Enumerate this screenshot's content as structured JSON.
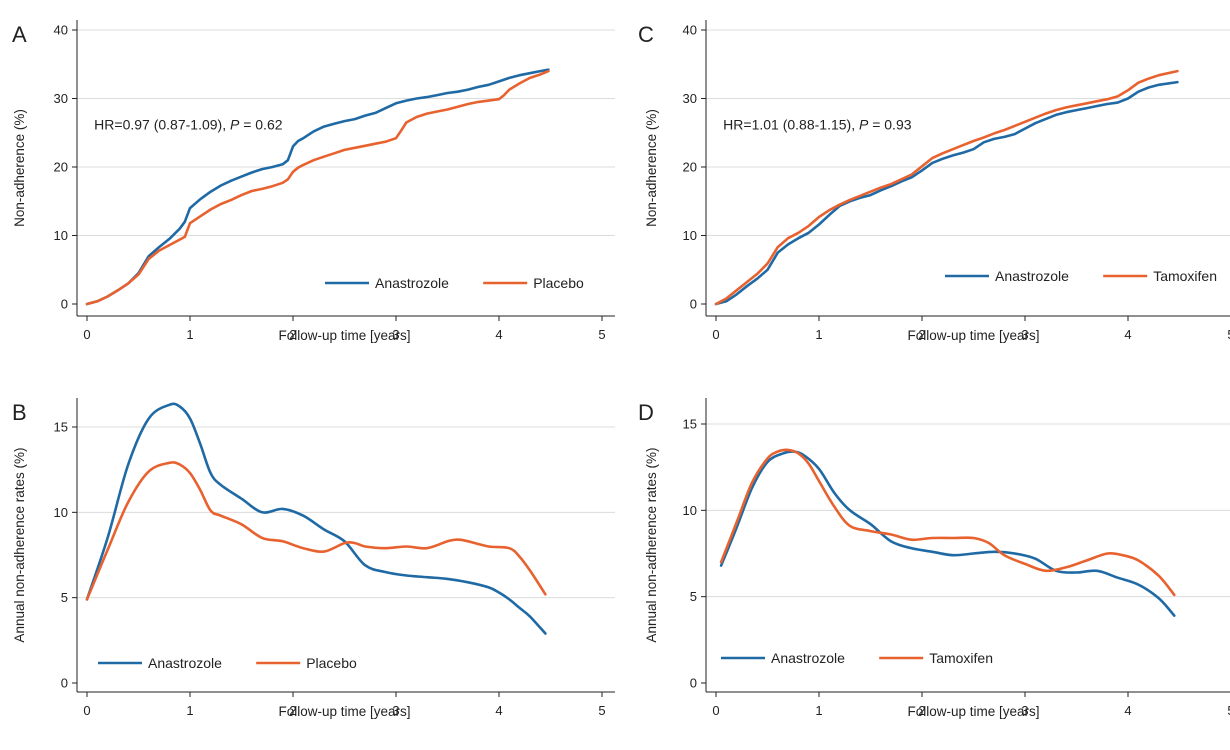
{
  "chart_data": [
    {
      "panel": "A",
      "type": "line",
      "xlabel": "Follow-up time [years]",
      "ylabel": "Non-adherence (%)",
      "xlim": [
        0,
        5
      ],
      "ylim": [
        0,
        40
      ],
      "xticks": [
        "0",
        "1",
        "2",
        "3",
        "4",
        "5"
      ],
      "yticks": [
        "0",
        "10",
        "20",
        "30",
        "40"
      ],
      "grid": "horizontal",
      "legend_position": "bottom-right",
      "annotation": {
        "prefix": "HR=0.97 (0.87-1.09), ",
        "p_symbol": "P",
        "suffix": " = 0.62"
      },
      "series": [
        {
          "name": "Anastrozole",
          "color": "#1f6aa5",
          "x": [
            0,
            0.1,
            0.2,
            0.3,
            0.4,
            0.5,
            0.6,
            0.7,
            0.8,
            0.9,
            0.95,
            1.0,
            1.1,
            1.2,
            1.3,
            1.4,
            1.5,
            1.6,
            1.7,
            1.8,
            1.9,
            1.95,
            2.0,
            2.05,
            2.1,
            2.2,
            2.3,
            2.4,
            2.5,
            2.6,
            2.7,
            2.8,
            2.9,
            3.0,
            3.1,
            3.2,
            3.3,
            3.4,
            3.5,
            3.6,
            3.7,
            3.8,
            3.9,
            4.0,
            4.1,
            4.2,
            4.3,
            4.4,
            4.48
          ],
          "y": [
            0,
            0.4,
            1.1,
            2.0,
            3.0,
            4.5,
            7.0,
            8.3,
            9.5,
            11.0,
            12.0,
            14.0,
            15.3,
            16.4,
            17.3,
            18.0,
            18.6,
            19.2,
            19.7,
            20.0,
            20.4,
            21.0,
            23.0,
            23.8,
            24.2,
            25.2,
            25.9,
            26.3,
            26.7,
            27.0,
            27.5,
            27.9,
            28.6,
            29.3,
            29.7,
            30.0,
            30.2,
            30.5,
            30.8,
            31.0,
            31.3,
            31.7,
            32.0,
            32.5,
            33.0,
            33.4,
            33.7,
            34.0,
            34.2
          ]
        },
        {
          "name": "Placebo",
          "color": "#e8622f",
          "x": [
            0,
            0.1,
            0.2,
            0.3,
            0.4,
            0.5,
            0.6,
            0.7,
            0.8,
            0.9,
            0.95,
            1.0,
            1.1,
            1.2,
            1.3,
            1.4,
            1.5,
            1.6,
            1.7,
            1.8,
            1.9,
            1.95,
            2.0,
            2.05,
            2.1,
            2.2,
            2.3,
            2.4,
            2.5,
            2.6,
            2.7,
            2.8,
            2.9,
            3.0,
            3.05,
            3.1,
            3.2,
            3.3,
            3.4,
            3.5,
            3.6,
            3.7,
            3.8,
            3.9,
            4.0,
            4.05,
            4.1,
            4.2,
            4.3,
            4.4,
            4.48
          ],
          "y": [
            0,
            0.4,
            1.1,
            2.0,
            3.0,
            4.3,
            6.6,
            7.8,
            8.6,
            9.4,
            9.8,
            11.8,
            12.8,
            13.8,
            14.6,
            15.2,
            15.9,
            16.5,
            16.8,
            17.2,
            17.7,
            18.2,
            19.3,
            19.9,
            20.3,
            21.0,
            21.5,
            22.0,
            22.5,
            22.8,
            23.1,
            23.4,
            23.7,
            24.2,
            25.3,
            26.5,
            27.3,
            27.8,
            28.1,
            28.4,
            28.8,
            29.2,
            29.5,
            29.7,
            29.9,
            30.5,
            31.3,
            32.2,
            33.0,
            33.5,
            34.0
          ]
        }
      ]
    },
    {
      "panel": "B",
      "type": "line",
      "xlabel": "Follow-up time [years]",
      "ylabel": "Annual non-adherence rates (%)",
      "xlim": [
        0,
        5
      ],
      "ylim": [
        0,
        17
      ],
      "xticks": [
        "0",
        "1",
        "2",
        "3",
        "4",
        "5"
      ],
      "yticks": [
        "0",
        "5",
        "10",
        "15"
      ],
      "grid": "horizontal",
      "legend_position": "bottom-left",
      "series": [
        {
          "name": "Anastrozole",
          "color": "#1f6aa5",
          "x": [
            0,
            0.2,
            0.4,
            0.6,
            0.8,
            0.9,
            1.0,
            1.1,
            1.2,
            1.3,
            1.5,
            1.7,
            1.9,
            2.1,
            2.3,
            2.5,
            2.7,
            2.9,
            3.1,
            3.3,
            3.5,
            3.7,
            3.9,
            4.0,
            4.1,
            4.2,
            4.3,
            4.45
          ],
          "y": [
            4.9,
            8.5,
            12.8,
            15.5,
            16.3,
            16.2,
            15.5,
            14.0,
            12.3,
            11.6,
            10.8,
            10.0,
            10.2,
            9.8,
            9.0,
            8.3,
            6.9,
            6.5,
            6.3,
            6.2,
            6.1,
            5.9,
            5.6,
            5.3,
            4.9,
            4.4,
            3.9,
            2.9
          ]
        },
        {
          "name": "Placebo",
          "color": "#e8622f",
          "x": [
            0,
            0.2,
            0.4,
            0.6,
            0.8,
            0.9,
            1.0,
            1.1,
            1.2,
            1.3,
            1.5,
            1.7,
            1.9,
            2.1,
            2.3,
            2.5,
            2.6,
            2.7,
            2.9,
            3.1,
            3.3,
            3.5,
            3.6,
            3.7,
            3.9,
            4.1,
            4.2,
            4.3,
            4.45
          ],
          "y": [
            4.9,
            7.8,
            10.6,
            12.4,
            12.9,
            12.8,
            12.3,
            11.3,
            10.1,
            9.8,
            9.3,
            8.5,
            8.3,
            7.9,
            7.7,
            8.2,
            8.2,
            8.0,
            7.9,
            8.0,
            7.9,
            8.3,
            8.4,
            8.3,
            8.0,
            7.9,
            7.4,
            6.6,
            5.2
          ]
        }
      ]
    },
    {
      "panel": "C",
      "type": "line",
      "xlabel": "Follow-up time [years]",
      "ylabel": "Non-adherence (%)",
      "xlim": [
        0,
        5
      ],
      "ylim": [
        0,
        40
      ],
      "xticks": [
        "0",
        "1",
        "2",
        "3",
        "4",
        "5"
      ],
      "yticks": [
        "0",
        "10",
        "20",
        "30",
        "40"
      ],
      "grid": "horizontal",
      "legend_position": "bottom-right",
      "annotation": {
        "prefix": "HR=1.01 (0.88-1.15), ",
        "p_symbol": "P",
        "suffix": " = 0.93"
      },
      "series": [
        {
          "name": "Anastrozole",
          "color": "#1f6aa5",
          "x": [
            0,
            0.1,
            0.2,
            0.3,
            0.4,
            0.5,
            0.6,
            0.7,
            0.8,
            0.9,
            1.0,
            1.1,
            1.2,
            1.3,
            1.4,
            1.5,
            1.6,
            1.7,
            1.8,
            1.9,
            2.0,
            2.1,
            2.2,
            2.3,
            2.4,
            2.5,
            2.6,
            2.7,
            2.8,
            2.9,
            3.0,
            3.1,
            3.2,
            3.3,
            3.4,
            3.5,
            3.6,
            3.7,
            3.8,
            3.9,
            4.0,
            4.1,
            4.2,
            4.3,
            4.48
          ],
          "y": [
            0,
            0.4,
            1.4,
            2.6,
            3.7,
            5.0,
            7.5,
            8.7,
            9.6,
            10.4,
            11.6,
            13.0,
            14.3,
            15.0,
            15.5,
            15.9,
            16.6,
            17.2,
            17.9,
            18.5,
            19.5,
            20.6,
            21.2,
            21.7,
            22.1,
            22.6,
            23.6,
            24.1,
            24.4,
            24.8,
            25.6,
            26.4,
            27.0,
            27.6,
            28.0,
            28.3,
            28.6,
            28.9,
            29.2,
            29.4,
            30.0,
            31.0,
            31.6,
            32.0,
            32.4
          ]
        },
        {
          "name": "Tamoxifen",
          "color": "#e8622f",
          "x": [
            0,
            0.1,
            0.2,
            0.3,
            0.4,
            0.5,
            0.6,
            0.7,
            0.8,
            0.9,
            1.0,
            1.1,
            1.2,
            1.3,
            1.4,
            1.5,
            1.6,
            1.7,
            1.8,
            1.9,
            2.0,
            2.1,
            2.2,
            2.3,
            2.4,
            2.5,
            2.6,
            2.7,
            2.8,
            2.9,
            3.0,
            3.1,
            3.2,
            3.3,
            3.4,
            3.5,
            3.6,
            3.7,
            3.8,
            3.9,
            4.0,
            4.1,
            4.2,
            4.3,
            4.48
          ],
          "y": [
            0,
            0.8,
            2.0,
            3.2,
            4.4,
            5.9,
            8.3,
            9.6,
            10.4,
            11.4,
            12.7,
            13.7,
            14.5,
            15.2,
            15.8,
            16.4,
            17.0,
            17.5,
            18.2,
            18.9,
            20.1,
            21.3,
            22.0,
            22.6,
            23.2,
            23.8,
            24.3,
            24.9,
            25.4,
            26.0,
            26.6,
            27.2,
            27.8,
            28.3,
            28.7,
            29.0,
            29.3,
            29.6,
            29.9,
            30.3,
            31.2,
            32.3,
            32.9,
            33.4,
            34.0
          ]
        }
      ]
    },
    {
      "panel": "D",
      "type": "line",
      "xlabel": "Follow-up time [years]",
      "ylabel": "Annual non-adherence rates (%)",
      "xlim": [
        0,
        5
      ],
      "ylim": [
        0,
        16.5
      ],
      "xticks": [
        "0",
        "1",
        "2",
        "3",
        "4",
        "5"
      ],
      "yticks": [
        "0",
        "5",
        "10",
        "15"
      ],
      "grid": "horizontal",
      "legend_position": "bottom-left",
      "series": [
        {
          "name": "Anastrozole",
          "color": "#1f6aa5",
          "x": [
            0.05,
            0.2,
            0.35,
            0.5,
            0.65,
            0.75,
            0.85,
            1.0,
            1.15,
            1.3,
            1.5,
            1.7,
            1.9,
            2.1,
            2.3,
            2.5,
            2.7,
            2.9,
            3.1,
            3.3,
            3.5,
            3.7,
            3.9,
            4.1,
            4.3,
            4.45
          ],
          "y": [
            6.8,
            9.0,
            11.3,
            12.8,
            13.3,
            13.4,
            13.2,
            12.4,
            11.0,
            10.0,
            9.2,
            8.2,
            7.8,
            7.6,
            7.4,
            7.5,
            7.6,
            7.5,
            7.2,
            6.5,
            6.4,
            6.5,
            6.1,
            5.7,
            4.9,
            3.9
          ]
        },
        {
          "name": "Tamoxifen",
          "color": "#e8622f",
          "x": [
            0.05,
            0.2,
            0.35,
            0.5,
            0.6,
            0.7,
            0.8,
            0.9,
            1.0,
            1.15,
            1.3,
            1.5,
            1.7,
            1.9,
            2.1,
            2.3,
            2.5,
            2.65,
            2.8,
            3.0,
            3.2,
            3.4,
            3.6,
            3.8,
            3.95,
            4.1,
            4.3,
            4.45
          ],
          "y": [
            7.0,
            9.3,
            11.6,
            13.0,
            13.4,
            13.5,
            13.3,
            12.7,
            11.7,
            10.2,
            9.1,
            8.8,
            8.6,
            8.3,
            8.4,
            8.4,
            8.4,
            8.1,
            7.4,
            6.9,
            6.5,
            6.7,
            7.1,
            7.5,
            7.4,
            7.1,
            6.2,
            5.1
          ]
        }
      ]
    }
  ],
  "panel_labels": [
    "A",
    "B",
    "C",
    "D"
  ]
}
